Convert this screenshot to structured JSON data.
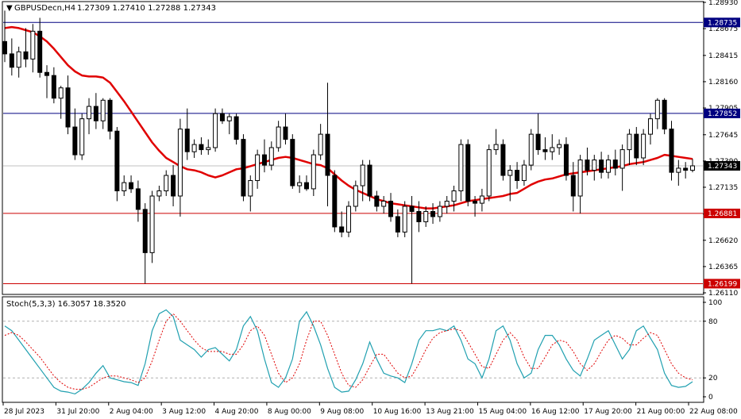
{
  "header": {
    "symbol": "GBPUSDecn,H4",
    "ohlc": "1.27309 1.27410 1.27288 1.27343",
    "arrow_glyph": "▼"
  },
  "colors": {
    "bull": "#ffffff",
    "bear": "#000000",
    "ma": "#e00000",
    "blue_level": "#000080",
    "red_level": "#cc0000",
    "stoch_main": "#20a0b0",
    "stoch_signal": "#e00000",
    "price_tag": "#000000"
  },
  "chart_data": [
    {
      "type": "candlestick",
      "title": "",
      "price_axis_ticks": [
        "1.28930",
        "1.28675",
        "1.28415",
        "1.28160",
        "1.27905",
        "1.27645",
        "1.27390",
        "1.27135",
        "1.26875",
        "1.26620",
        "1.26365",
        "1.26110"
      ],
      "ylim": [
        1.2611,
        1.2893
      ],
      "time_labels": [
        "28 Jul 2023",
        "31 Jul 20:00",
        "2 Aug 04:00",
        "3 Aug 12:00",
        "4 Aug 20:00",
        "8 Aug 00:00",
        "9 Aug 08:00",
        "10 Aug 16:00",
        "13 Aug 21:00",
        "15 Aug 04:00",
        "16 Aug 12:00",
        "17 Aug 20:00",
        "21 Aug 00:00",
        "22 Aug 08:00"
      ],
      "horizontal_levels": [
        {
          "value": 1.28735,
          "label": "1.28735",
          "color": "blue"
        },
        {
          "value": 1.27852,
          "label": "1.27852",
          "color": "blue"
        },
        {
          "value": 1.26881,
          "label": "1.26881",
          "color": "red"
        },
        {
          "value": 1.26199,
          "label": "1.26199",
          "color": "red"
        }
      ],
      "current_price": {
        "value": 1.27343,
        "label": "1.27343"
      },
      "candles": [
        [
          1.2855,
          1.2885,
          1.2835,
          1.2843
        ],
        [
          1.2843,
          1.2858,
          1.2822,
          1.283
        ],
        [
          1.283,
          1.285,
          1.282,
          1.2845
        ],
        [
          1.2845,
          1.2868,
          1.283,
          1.2838
        ],
        [
          1.2838,
          1.2872,
          1.2825,
          1.2865
        ],
        [
          1.2865,
          1.2878,
          1.282,
          1.2825
        ],
        [
          1.2825,
          1.2832,
          1.28,
          1.2822
        ],
        [
          1.2822,
          1.283,
          1.2795,
          1.28
        ],
        [
          1.28,
          1.2812,
          1.278,
          1.281
        ],
        [
          1.281,
          1.2822,
          1.2765,
          1.2772
        ],
        [
          1.2772,
          1.279,
          1.274,
          1.2745
        ],
        [
          1.2745,
          1.2785,
          1.274,
          1.278
        ],
        [
          1.278,
          1.28,
          1.2765,
          1.2792
        ],
        [
          1.2792,
          1.2805,
          1.277,
          1.2778
        ],
        [
          1.2778,
          1.28,
          1.277,
          1.2798
        ],
        [
          1.2798,
          1.28,
          1.276,
          1.2768
        ],
        [
          1.2768,
          1.2772,
          1.27,
          1.271
        ],
        [
          1.271,
          1.2725,
          1.2705,
          1.2718
        ],
        [
          1.2718,
          1.2725,
          1.2708,
          1.2712
        ],
        [
          1.2712,
          1.272,
          1.268,
          1.2692
        ],
        [
          1.2692,
          1.2698,
          1.262,
          1.265
        ],
        [
          1.265,
          1.271,
          1.264,
          1.2705
        ],
        [
          1.2705,
          1.2715,
          1.27,
          1.271
        ],
        [
          1.271,
          1.273,
          1.2705,
          1.2725
        ],
        [
          1.2725,
          1.2735,
          1.2695,
          1.2705
        ],
        [
          1.2705,
          1.278,
          1.2685,
          1.277
        ],
        [
          1.277,
          1.279,
          1.274,
          1.2748
        ],
        [
          1.2748,
          1.276,
          1.2742,
          1.2755
        ],
        [
          1.2755,
          1.2762,
          1.2745,
          1.275
        ],
        [
          1.275,
          1.276,
          1.2745,
          1.2752
        ],
        [
          1.2752,
          1.279,
          1.2748,
          1.2785
        ],
        [
          1.2785,
          1.279,
          1.2775,
          1.2778
        ],
        [
          1.2778,
          1.2785,
          1.2765,
          1.2782
        ],
        [
          1.2782,
          1.2785,
          1.2755,
          1.276
        ],
        [
          1.276,
          1.2765,
          1.27,
          1.2705
        ],
        [
          1.2705,
          1.2725,
          1.269,
          1.272
        ],
        [
          1.272,
          1.275,
          1.2712,
          1.2745
        ],
        [
          1.2745,
          1.276,
          1.2728,
          1.2735
        ],
        [
          1.2735,
          1.2758,
          1.273,
          1.2752
        ],
        [
          1.2752,
          1.2778,
          1.2748,
          1.2772
        ],
        [
          1.2772,
          1.2785,
          1.2755,
          1.276
        ],
        [
          1.276,
          1.2765,
          1.2712,
          1.2715
        ],
        [
          1.2715,
          1.2725,
          1.2708,
          1.2718
        ],
        [
          1.2718,
          1.2725,
          1.271,
          1.2712
        ],
        [
          1.2712,
          1.275,
          1.2705,
          1.2745
        ],
        [
          1.2745,
          1.2775,
          1.274,
          1.2765
        ],
        [
          1.2765,
          1.2815,
          1.2695,
          1.2725
        ],
        [
          1.2725,
          1.273,
          1.267,
          1.2675
        ],
        [
          1.2675,
          1.269,
          1.2665,
          1.267
        ],
        [
          1.267,
          1.27,
          1.2665,
          1.2695
        ],
        [
          1.2695,
          1.272,
          1.269,
          1.2715
        ],
        [
          1.2715,
          1.274,
          1.27,
          1.2735
        ],
        [
          1.2735,
          1.274,
          1.27,
          1.2705
        ],
        [
          1.2705,
          1.271,
          1.269,
          1.2695
        ],
        [
          1.2695,
          1.2705,
          1.2688,
          1.27
        ],
        [
          1.27,
          1.2708,
          1.268,
          1.2685
        ],
        [
          1.2685,
          1.2692,
          1.2665,
          1.267
        ],
        [
          1.267,
          1.27,
          1.2665,
          1.2695
        ],
        [
          1.2695,
          1.2705,
          1.262,
          1.269
        ],
        [
          1.269,
          1.27,
          1.267,
          1.268
        ],
        [
          1.268,
          1.2695,
          1.2675,
          1.269
        ],
        [
          1.269,
          1.2698,
          1.2678,
          1.2685
        ],
        [
          1.2685,
          1.27,
          1.268,
          1.2695
        ],
        [
          1.2695,
          1.2705,
          1.2688,
          1.27
        ],
        [
          1.27,
          1.2715,
          1.269,
          1.271
        ],
        [
          1.271,
          1.276,
          1.27,
          1.2755
        ],
        [
          1.2755,
          1.276,
          1.2695,
          1.27
        ],
        [
          1.27,
          1.2705,
          1.2685,
          1.2698
        ],
        [
          1.2698,
          1.2712,
          1.269,
          1.2705
        ],
        [
          1.2705,
          1.2755,
          1.27,
          1.275
        ],
        [
          1.275,
          1.277,
          1.2745,
          1.2755
        ],
        [
          1.2755,
          1.276,
          1.272,
          1.2725
        ],
        [
          1.2725,
          1.2735,
          1.27,
          1.273
        ],
        [
          1.273,
          1.2738,
          1.2712,
          1.272
        ],
        [
          1.272,
          1.274,
          1.2715,
          1.2735
        ],
        [
          1.2735,
          1.277,
          1.273,
          1.2765
        ],
        [
          1.2765,
          1.2785,
          1.2745,
          1.275
        ],
        [
          1.275,
          1.2762,
          1.274,
          1.2748
        ],
        [
          1.2748,
          1.2765,
          1.274,
          1.2752
        ],
        [
          1.2752,
          1.276,
          1.2745,
          1.2755
        ],
        [
          1.2755,
          1.2762,
          1.272,
          1.2725
        ],
        [
          1.2725,
          1.2738,
          1.269,
          1.2705
        ],
        [
          1.2705,
          1.2745,
          1.2688,
          1.274
        ],
        [
          1.274,
          1.2752,
          1.2725,
          1.273
        ],
        [
          1.273,
          1.2745,
          1.272,
          1.274
        ],
        [
          1.274,
          1.2748,
          1.2722,
          1.2728
        ],
        [
          1.2728,
          1.2745,
          1.2722,
          1.274
        ],
        [
          1.274,
          1.275,
          1.2725,
          1.2732
        ],
        [
          1.2732,
          1.2755,
          1.271,
          1.275
        ],
        [
          1.275,
          1.277,
          1.2735,
          1.2765
        ],
        [
          1.2765,
          1.2772,
          1.2735,
          1.2742
        ],
        [
          1.2742,
          1.277,
          1.2735,
          1.2765
        ],
        [
          1.2765,
          1.2785,
          1.2755,
          1.278
        ],
        [
          1.278,
          1.28,
          1.277,
          1.2798
        ],
        [
          1.2798,
          1.28,
          1.2765,
          1.277
        ],
        [
          1.277,
          1.2778,
          1.272,
          1.2728
        ],
        [
          1.2728,
          1.274,
          1.2715,
          1.2732
        ],
        [
          1.2732,
          1.2738,
          1.2722,
          1.273
        ],
        [
          1.273,
          1.2741,
          1.2728,
          1.27343
        ]
      ],
      "moving_average": [
        1.2868,
        1.2869,
        1.2868,
        1.2866,
        1.2864,
        1.286,
        1.2855,
        1.2848,
        1.284,
        1.2832,
        1.2826,
        1.2822,
        1.2821,
        1.2821,
        1.282,
        1.2815,
        1.2806,
        1.2797,
        1.2787,
        1.2777,
        1.2767,
        1.2757,
        1.2749,
        1.2742,
        1.2738,
        1.2734,
        1.2731,
        1.273,
        1.2728,
        1.2725,
        1.2723,
        1.2725,
        1.2728,
        1.2731,
        1.2732,
        1.2734,
        1.2736,
        1.2738,
        1.274,
        1.2742,
        1.2743,
        1.2742,
        1.274,
        1.2738,
        1.2736,
        1.2735,
        1.2732,
        1.2726,
        1.272,
        1.2715,
        1.2711,
        1.2708,
        1.2705,
        1.2702,
        1.27,
        1.2698,
        1.2697,
        1.2696,
        1.2695,
        1.2694,
        1.2693,
        1.2693,
        1.2694,
        1.2695,
        1.2696,
        1.2698,
        1.27,
        1.2701,
        1.2702,
        1.2703,
        1.2704,
        1.2705,
        1.2707,
        1.2708,
        1.2712,
        1.2716,
        1.2719,
        1.2721,
        1.2722,
        1.2724,
        1.2726,
        1.2727,
        1.2728,
        1.2729,
        1.273,
        1.2731,
        1.2732,
        1.2733,
        1.2734,
        1.2736,
        1.2737,
        1.2738,
        1.274,
        1.2742,
        1.2745,
        1.2744,
        1.2743,
        1.2742,
        1.2741
      ]
    },
    {
      "type": "line",
      "title": "Stoch(5,3,3) 16.3057 18.3520",
      "ylim": [
        0,
        100
      ],
      "ticks": [
        "100",
        "80",
        "20",
        "0"
      ],
      "levels": [
        80,
        20
      ],
      "main": [
        75,
        70,
        60,
        50,
        40,
        30,
        20,
        10,
        6,
        5,
        3,
        8,
        15,
        25,
        33,
        20,
        18,
        16,
        15,
        12,
        35,
        70,
        88,
        92,
        85,
        60,
        55,
        50,
        42,
        50,
        52,
        45,
        38,
        50,
        75,
        85,
        70,
        40,
        15,
        10,
        20,
        40,
        80,
        90,
        75,
        55,
        30,
        10,
        5,
        6,
        18,
        35,
        58,
        40,
        25,
        22,
        20,
        15,
        35,
        60,
        70,
        70,
        72,
        70,
        75,
        60,
        40,
        35,
        20,
        40,
        70,
        75,
        60,
        35,
        20,
        25,
        50,
        65,
        65,
        55,
        40,
        28,
        22,
        40,
        60,
        65,
        70,
        55,
        40,
        50,
        70,
        75,
        62,
        50,
        25,
        12,
        10,
        11,
        16
      ],
      "signal": [
        65,
        68,
        65,
        58,
        50,
        42,
        32,
        22,
        15,
        10,
        8,
        8,
        10,
        15,
        20,
        22,
        22,
        20,
        18,
        15,
        20,
        38,
        60,
        80,
        88,
        80,
        70,
        60,
        52,
        48,
        48,
        48,
        45,
        45,
        55,
        70,
        75,
        65,
        45,
        25,
        15,
        20,
        35,
        60,
        80,
        80,
        65,
        45,
        25,
        12,
        10,
        18,
        32,
        45,
        45,
        35,
        25,
        20,
        22,
        35,
        50,
        62,
        68,
        70,
        72,
        70,
        58,
        45,
        32,
        30,
        45,
        60,
        68,
        60,
        42,
        30,
        30,
        42,
        55,
        60,
        58,
        48,
        35,
        28,
        35,
        48,
        60,
        65,
        62,
        55,
        55,
        62,
        68,
        65,
        50,
        35,
        25,
        20,
        18
      ]
    }
  ]
}
